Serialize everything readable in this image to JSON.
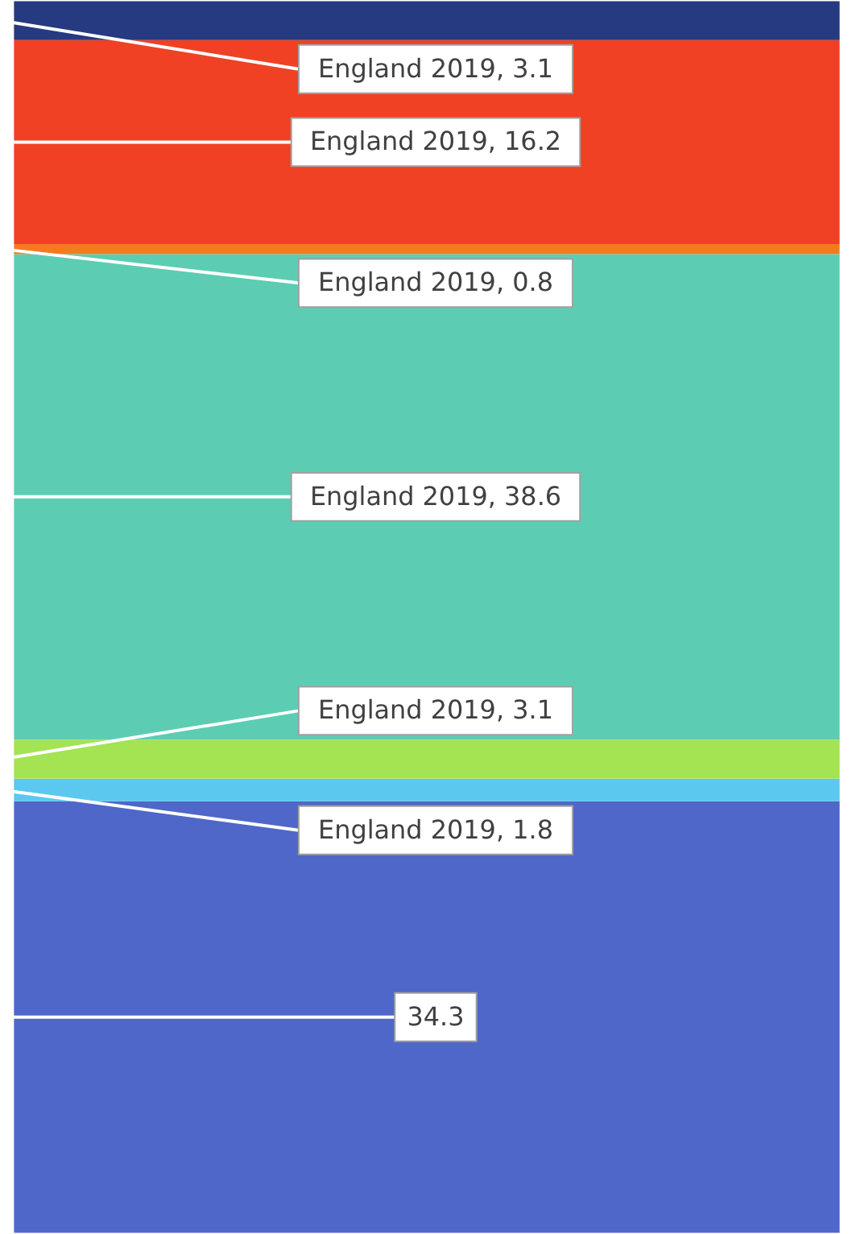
{
  "chart_data": {
    "type": "bar",
    "stacked": true,
    "categories": [
      null
    ],
    "tick_labels": false,
    "grid": false,
    "legend": false,
    "series": [
      {
        "color": "#4f67c8",
        "values": [
          34.3
        ],
        "value_labels": [
          "34.3"
        ]
      },
      {
        "color": "#5bc8f0",
        "values": [
          1.8
        ],
        "value_labels": [
          "England 2019, 1.8"
        ]
      },
      {
        "color": "#a4e352",
        "values": [
          3.1
        ],
        "value_labels": [
          "England 2019, 3.1"
        ]
      },
      {
        "color": "#5ccdb3",
        "values": [
          38.6
        ],
        "value_labels": [
          "England 2019, 38.6"
        ]
      },
      {
        "color": "#f47a20",
        "values": [
          0.8
        ],
        "value_labels": [
          "England 2019, 0.8"
        ]
      },
      {
        "color": "#f04124",
        "values": [
          16.2
        ],
        "value_labels": [
          "England 2019, 16.2"
        ]
      },
      {
        "color": "#253a80",
        "values": [
          3.1
        ],
        "value_labels": [
          "England 2019, 3.1"
        ]
      }
    ]
  }
}
